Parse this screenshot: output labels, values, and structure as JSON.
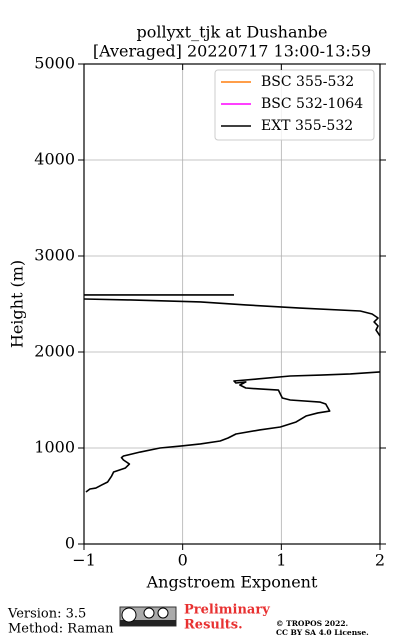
{
  "chart_data": {
    "type": "line",
    "title": [
      "pollyxt_tjk at Dushanbe",
      "[Averaged] 20220717 13:00-13:59"
    ],
    "x_label": "Angstroem Exponent",
    "y_label": "Height (m)",
    "xlim": [
      -1,
      2
    ],
    "xticks": [
      {
        "value": -1,
        "label": "−1"
      },
      0,
      1,
      2
    ],
    "ylim": [
      0,
      5000
    ],
    "yticks": [
      0,
      1000,
      2000,
      3000,
      4000,
      5000
    ],
    "grid": true,
    "legend": "upper right",
    "series": [
      {
        "name": "BSC 355-532",
        "color": "#ff7f0e",
        "x": [],
        "values": []
      },
      {
        "name": "BSC 532-1064",
        "color": "#ff00ff",
        "x": [],
        "values": []
      },
      {
        "name": "EXT 355-532",
        "color": "#000000",
        "x": [
          -0.98,
          -0.94,
          -0.88,
          -0.82,
          -0.76,
          -0.72,
          -0.7,
          -0.64,
          -0.58,
          -0.54,
          -0.6,
          -0.62,
          -0.6,
          -0.43,
          -0.23,
          -0.01,
          0.18,
          0.38,
          0.46,
          0.54,
          0.78,
          0.99,
          1.15,
          1.25,
          1.37,
          1.49,
          1.45,
          1.39,
          1.09,
          1.01,
          0.97,
          0.78,
          0.64,
          0.58,
          0.64,
          0.54,
          0.52,
          0.76,
          1.09,
          1.4,
          1.7,
          2.0,
          null,
          2.0,
          1.96,
          1.98,
          1.94,
          1.98,
          1.92,
          1.8,
          1.19,
          0.64,
          0.18,
          -0.53,
          -1.0,
          null,
          -1.0,
          0.52
        ],
        "values": [
          542,
          573,
          583,
          615,
          646,
          708,
          750,
          771,
          792,
          833,
          875,
          900,
          917,
          958,
          1000,
          1021,
          1042,
          1073,
          1104,
          1146,
          1188,
          1219,
          1271,
          1333,
          1365,
          1385,
          1458,
          1479,
          1500,
          1521,
          1604,
          1615,
          1625,
          1656,
          1688,
          1677,
          1698,
          1719,
          1750,
          1760,
          1771,
          1792,
          null,
          2167,
          2229,
          2271,
          2313,
          2354,
          2396,
          2427,
          2458,
          2490,
          2521,
          2542,
          2552,
          null,
          2594,
          2594
        ]
      }
    ]
  },
  "footer": {
    "version": "Version: 3.5",
    "method": "Method: Raman",
    "preliminary": [
      "Preliminary",
      "Results."
    ],
    "copyright": [
      "© TROPOS 2022.",
      "CC BY SA 4.0 License."
    ]
  }
}
